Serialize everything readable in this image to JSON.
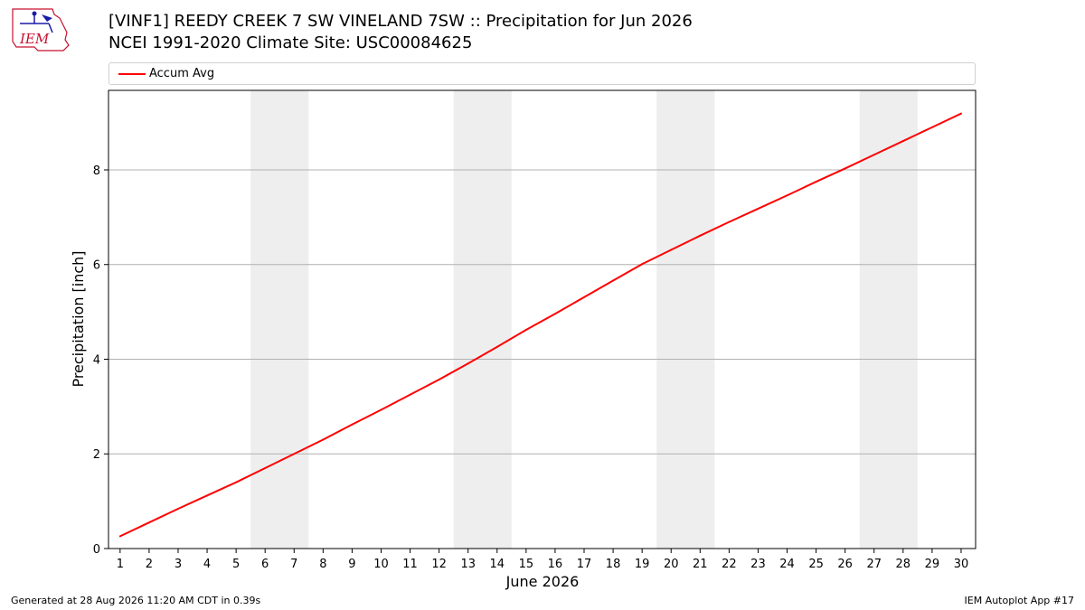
{
  "header": {
    "title_line1": "[VINF1] REEDY CREEK 7 SW VINELAND 7SW :: Precipitation for Jun 2026",
    "title_line2": "NCEI 1991-2020 Climate Site: USC00084625",
    "logo_text": "IEM"
  },
  "legend": {
    "label": "Accum Avg",
    "color": "#ff0000"
  },
  "footer": {
    "generated": "Generated at 28 Aug 2026 11:20 AM CDT in 0.39s",
    "app": "IEM Autoplot App #17"
  },
  "chart_data": {
    "type": "line",
    "xlabel": "June 2026",
    "ylabel": "Precipitation [inch]",
    "xlim": [
      0.6,
      30.5
    ],
    "ylim": [
      0,
      9.68
    ],
    "yticks": [
      0,
      2,
      4,
      6,
      8
    ],
    "grid": "y",
    "weekend_shading": [
      [
        5.5,
        7.5
      ],
      [
        12.5,
        14.5
      ],
      [
        19.5,
        21.5
      ],
      [
        26.5,
        28.5
      ]
    ],
    "shading_color": "#eeeeee",
    "categories": [
      "1",
      "2",
      "3",
      "4",
      "5",
      "6",
      "7",
      "8",
      "9",
      "10",
      "11",
      "12",
      "13",
      "14",
      "15",
      "16",
      "17",
      "18",
      "19",
      "20",
      "21",
      "22",
      "23",
      "24",
      "25",
      "26",
      "27",
      "28",
      "29",
      "30"
    ],
    "series": [
      {
        "name": "Accum Avg",
        "color": "#ff0000",
        "values": [
          0.26,
          0.55,
          0.84,
          1.12,
          1.4,
          1.7,
          2.0,
          2.3,
          2.62,
          2.93,
          3.25,
          3.57,
          3.91,
          4.26,
          4.62,
          4.96,
          5.31,
          5.66,
          6.01,
          6.31,
          6.61,
          6.9,
          7.18,
          7.46,
          7.75,
          8.03,
          8.32,
          8.61,
          8.9,
          9.19
        ]
      }
    ]
  }
}
